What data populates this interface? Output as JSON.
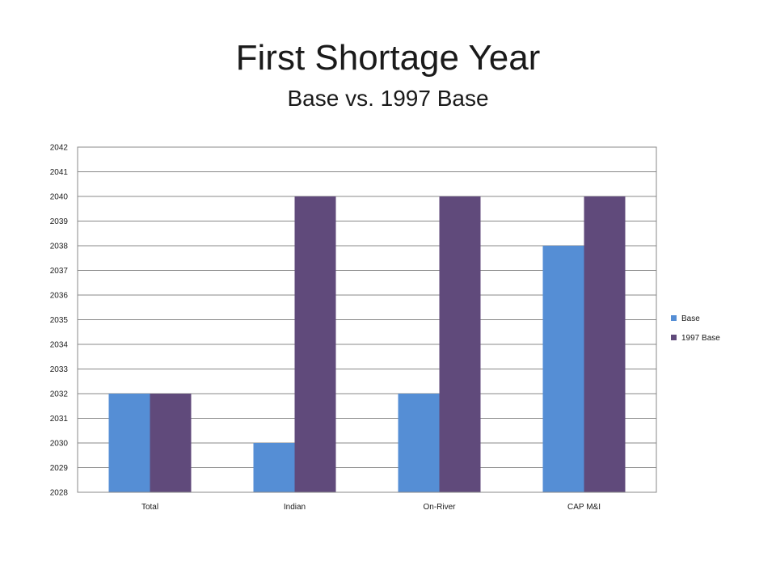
{
  "chart_data": {
    "type": "bar",
    "title": "First Shortage Year",
    "subtitle": "Base vs. 1997 Base",
    "xlabel": "",
    "ylabel": "",
    "categories": [
      "Total",
      "Indian",
      "On-River",
      "CAP M&I"
    ],
    "series": [
      {
        "name": "Base",
        "values": [
          2032,
          2030,
          2032,
          2038
        ],
        "color": "#558ED5"
      },
      {
        "name": "1997 Base",
        "values": [
          2032,
          2040,
          2040,
          2040
        ],
        "color": "#604A7B"
      }
    ],
    "ylim": [
      2028,
      2042
    ],
    "yticks": [
      "2028",
      "2029",
      "2030",
      "2031",
      "2032",
      "2033",
      "2034",
      "2035",
      "2036",
      "2037",
      "2038",
      "2039",
      "2040",
      "2041",
      "2042"
    ],
    "grid": true,
    "legend_position": "right"
  }
}
